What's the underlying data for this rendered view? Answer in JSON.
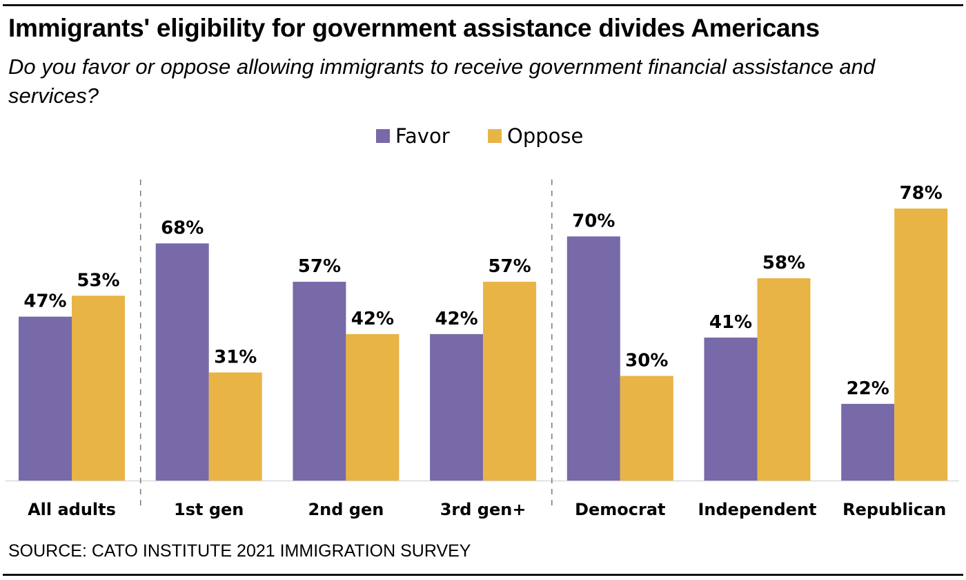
{
  "chart_data": {
    "type": "bar",
    "title": "Immigrants' eligibility for government assistance divides Americans",
    "subtitle": "Do you favor or oppose allowing immigrants to receive government financial assistance and services?",
    "source": "SOURCE: CATO INSTITUTE 2021 IMMIGRATION SURVEY",
    "categories": [
      "All adults",
      "1st gen",
      "2nd gen",
      "3rd gen+",
      "Democrat",
      "Independent",
      "Republican"
    ],
    "series": [
      {
        "name": "Favor",
        "color": "#7869A8",
        "values": [
          47,
          68,
          57,
          42,
          70,
          41,
          22
        ]
      },
      {
        "name": "Oppose",
        "color": "#E8B445",
        "values": [
          53,
          31,
          42,
          57,
          30,
          58,
          78
        ]
      }
    ],
    "value_suffix": "%",
    "ylim": [
      0,
      100
    ],
    "grid": false,
    "legend": "top-center",
    "group_separators_after": [
      0,
      3
    ]
  }
}
